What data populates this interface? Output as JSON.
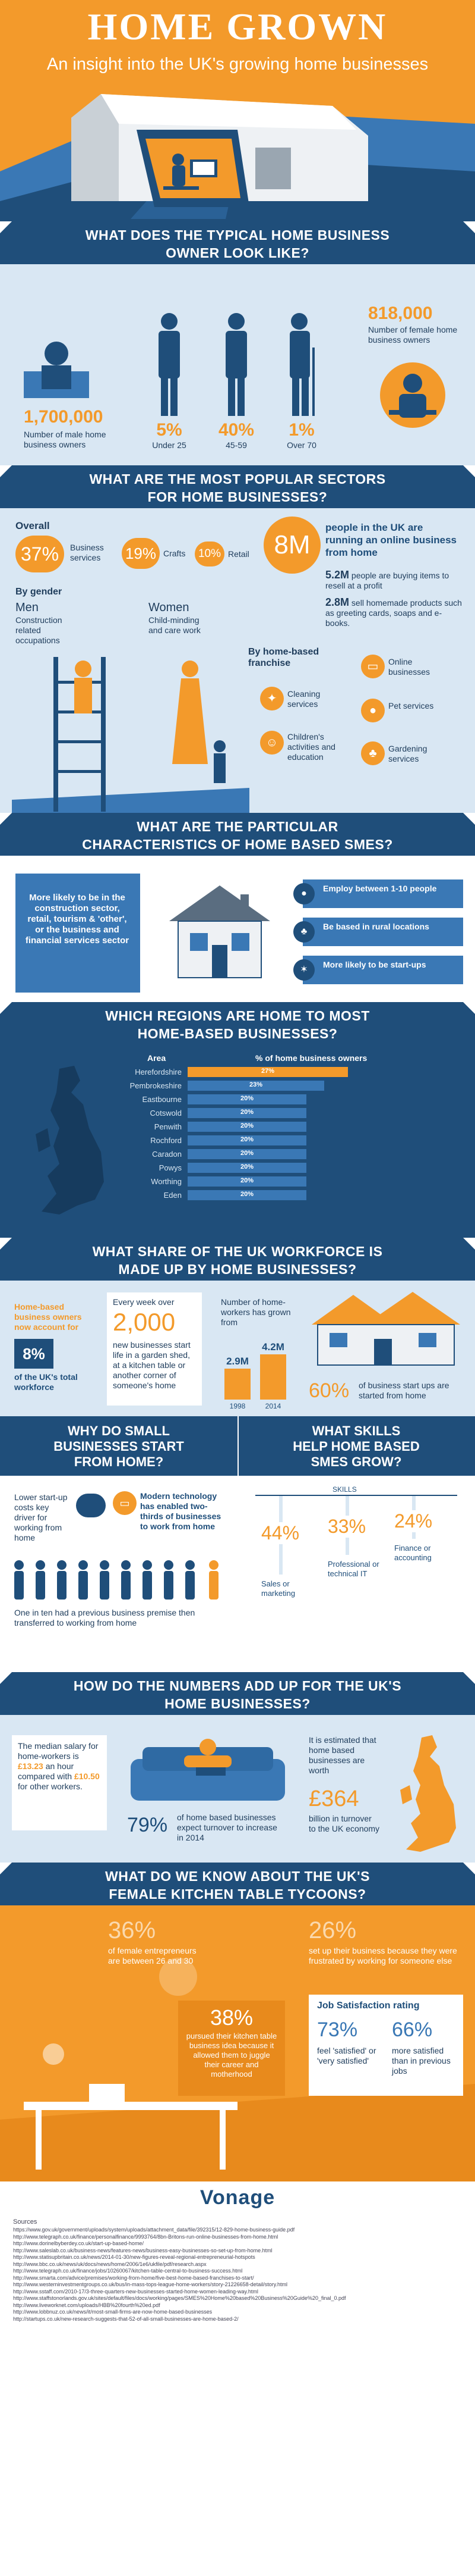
{
  "header": {
    "title": "HOME GROWN",
    "subtitle": "An insight into the UK's growing home businesses"
  },
  "s1": {
    "heading_line1": "WHAT DOES THE TYPICAL HOME BUSINESS",
    "heading_line2": "OWNER LOOK LIKE?",
    "male_count": "1,700,000",
    "male_label": "Number of male home business owners",
    "female_count": "818,000",
    "female_label": "Number of female home business owners",
    "ages": [
      {
        "pct": "5%",
        "label": "Under 25"
      },
      {
        "pct": "40%",
        "label": "45-59"
      },
      {
        "pct": "1%",
        "label": "Over 70"
      }
    ]
  },
  "s2": {
    "heading_line1": "WHAT ARE THE MOST POPULAR SECTORS",
    "heading_line2": "FOR HOME BUSINESSES?",
    "overall_label": "Overall",
    "overall": [
      {
        "pct": "37%",
        "label": "Business services"
      },
      {
        "pct": "19%",
        "label": "Crafts"
      },
      {
        "pct": "10%",
        "label": "Retail"
      }
    ],
    "big_number": "8M",
    "big_text": "people in the UK are running an online business from home",
    "stat1_num": "5.2M",
    "stat1_text": "people are buying items to resell at a profit",
    "stat2_num": "2.8M",
    "stat2_text": "sell homemade products such as greeting cards, soaps and e-books.",
    "gender_label": "By gender",
    "men_label": "Men",
    "men_text": "Construction related occupations",
    "women_label": "Women",
    "women_text": "Child-minding and care work",
    "franchise_label": "By home-based franchise",
    "franchise": [
      {
        "label": "Cleaning services"
      },
      {
        "label": "Online businesses"
      },
      {
        "label": "Pet services"
      },
      {
        "label": "Children's activities and education"
      },
      {
        "label": "Gardening services"
      }
    ]
  },
  "s3": {
    "heading_line1": "WHAT ARE THE PARTICULAR",
    "heading_line2": "CHARACTERISTICS OF HOME BASED SMES?",
    "left_text": "More likely to be in the construction sector, retail, tourism & 'other', or the business and financial services sector",
    "right": [
      {
        "text": "Employ between 1-10 people"
      },
      {
        "text": "Be based in rural locations"
      },
      {
        "text": "More likely to be start-ups"
      }
    ]
  },
  "s4": {
    "heading_line1": "WHICH REGIONS ARE HOME TO MOST",
    "heading_line2": "HOME-BASED BUSINESSES?",
    "area_header": "Area",
    "pct_header": "% of home business owners",
    "chart_data": {
      "type": "bar",
      "categories": [
        "Herefordshire",
        "Pembrokeshire",
        "Eastbourne",
        "Cotswold",
        "Penwith",
        "Rochford",
        "Caradon",
        "Powys",
        "Worthing",
        "Eden"
      ],
      "values": [
        27,
        23,
        20,
        20,
        20,
        20,
        20,
        20,
        20,
        20
      ],
      "labels": [
        "27%",
        "23%",
        "20%",
        "20%",
        "20%",
        "20%",
        "20%",
        "20%",
        "20%",
        "20%"
      ]
    }
  },
  "s5": {
    "heading_line1": "WHAT SHARE OF THE UK WORKFORCE IS",
    "heading_line2": "MADE UP BY HOME BUSINESSES?",
    "left_text1": "Home-based business owners now account for",
    "left_pct": "8%",
    "left_text2": "of the UK's total workforce",
    "week_text1": "Every week over",
    "week_num": "2,000",
    "week_text2": "new businesses start life in a garden shed, at a kitchen table or another corner of someone's home",
    "growth_text": "Number of home-workers has grown from",
    "growth": [
      {
        "year": "1998",
        "value_label": "2.9M",
        "value": 2.9
      },
      {
        "year": "2014",
        "value_label": "4.2M",
        "value": 4.2
      }
    ],
    "start_pct": "60%",
    "start_text": "of business start ups are started from home"
  },
  "s6": {
    "left_heading_line1": "WHY DO SMALL",
    "left_heading_line2": "BUSINESSES START",
    "left_heading_line3": "FROM HOME?",
    "costs_text": "Lower start-up costs key driver for working from home",
    "tech_text": "Modern technology has enabled two-thirds of businesses to work from home",
    "one_in_ten": "One in ten had a previous business premise then transferred to working from home",
    "right_heading_line1": "WHAT SKILLS",
    "right_heading_line2": "HELP HOME BASED",
    "right_heading_line3": "SMES GROW?",
    "skills_label": "SKILLS",
    "skills": [
      {
        "pct": "44%",
        "label": "Sales or marketing",
        "value": 44
      },
      {
        "pct": "33%",
        "label": "Professional or technical IT",
        "value": 33
      },
      {
        "pct": "24%",
        "label": "Finance or accounting",
        "value": 24
      }
    ]
  },
  "s7": {
    "heading_line1": "HOW DO THE NUMBERS ADD UP FOR THE UK'S",
    "heading_line2": "HOME BUSINESSES?",
    "salary_text1": "The median salary for home-workers is ",
    "salary_home": "£13.23",
    "salary_text2": " an hour compared with ",
    "salary_other": "£10.50",
    "salary_text3": " for other workers.",
    "pct": "79%",
    "pct_text": "of home based businesses expect turnover to increase in 2014",
    "worth_text1": "It is estimated that home based businesses are worth",
    "worth_num": "£364",
    "worth_text2": "billion in turnover to the UK economy"
  },
  "s8": {
    "heading_line1": "WHAT DO WE KNOW ABOUT THE UK'S",
    "heading_line2": "FEMALE KITCHEN TABLE TYCOONS?",
    "f1_pct": "36%",
    "f1_text": "of female entrepreneurs are between 26 and 30",
    "f2_pct": "26%",
    "f2_text": "set up their business because they were frustrated by working for someone else",
    "f3_pct": "38%",
    "f3_text": "pursued their kitchen table business idea because it allowed them to juggle their career and motherhood",
    "job_label": "Job Satisfaction rating",
    "j1_pct": "73%",
    "j1_text": "feel 'satisfied' or 'very satisfied'",
    "j2_pct": "66%",
    "j2_text": "more satisfied than in previous jobs"
  },
  "footer": {
    "brand": "Vonage",
    "sources_label": "Sources",
    "sources": [
      "https://www.gov.uk/government/uploads/system/uploads/attachment_data/file/392315/12-829-home-business-guide.pdf",
      "http://www.telegraph.co.uk/finance/personalfinance/9993764/8bn-Britons-run-online-businesses-from-home.html",
      "http://www.dorinelbyberdey.co.uk/start-up-based-home/",
      "http://www.saleslab.co.uk/business-news/features-news/business-easy-businesses-so-set-up-from-home.html",
      "http://www.statisupbritain.co.uk/news/2014-01-30/new-figures-reveal-regional-entrepreneurial-hotspots",
      "http://www.bbc.co.uk/news/uk/docs/news/home/2006/1e6/ukfile/pdf/research.aspx",
      "http://www.telegraph.co.uk/finance/jobs/10260067/kitchen-table-central-to-business-success.html",
      "http://www.smarta.com/advice/premises/working-from-home/five-best-home-based-franchises-to-start/",
      "http://www.westerninvestmentgroups.co.uk/bus/in-mass-tops-league-home-workers/story-21226658-detail/story.html",
      "http://www.sstaff.com/2010-17/3-three-quarters-new-businesses-started-home-women-leading-way.html",
      "http://www.staffstonorlands.gov.uk/sites/default/files/docs/working/pages/SMES%20Home%20based%20Business%20Guide%20_final_0.pdf",
      "http://www.liveworknet.com/uploads/HBB%20fourth%20ed.pdf",
      "http://www.lobbnuz.co.uk/news/it/most-small-firms-are-now-home-based-businesses",
      "http://startups.co.uk/new-research-suggests-that-52-of-all-small-businesses-are-home-based-2/"
    ]
  },
  "colors": {
    "navy": "#1f4e7a",
    "orange": "#f39a2b",
    "light_blue": "#d9e7f3",
    "mid_blue": "#3a78b5"
  }
}
